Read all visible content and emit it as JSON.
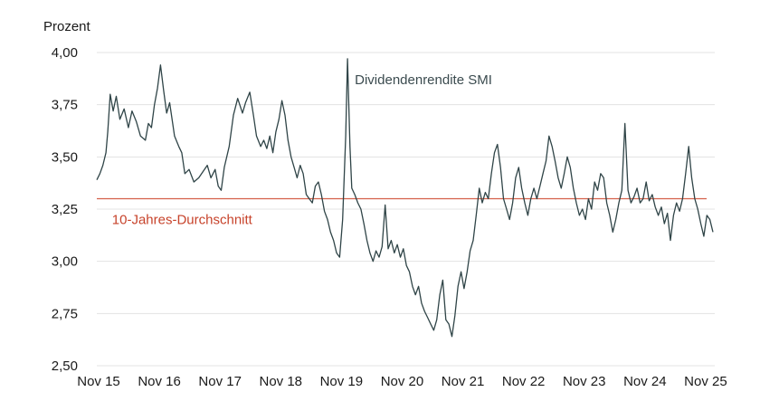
{
  "chart_data": {
    "type": "line",
    "ylabel": "Prozent",
    "ylim": [
      2.5,
      4.0
    ],
    "yticks": [
      4.0,
      3.75,
      3.5,
      3.25,
      3.0,
      2.75,
      2.5
    ],
    "ytick_labels": [
      "4,00",
      "3,75",
      "3,50",
      "3,25",
      "3,00",
      "2,75",
      "2,50"
    ],
    "xlim": [
      0,
      10.18
    ],
    "xticks": [
      0,
      1,
      2,
      3,
      4,
      5,
      6,
      7,
      8,
      9,
      10
    ],
    "xtick_labels": [
      "Nov 15",
      "Nov 16",
      "Nov 17",
      "Nov 18",
      "Nov 19",
      "Nov 20",
      "Nov 21",
      "Nov 22",
      "Nov 23",
      "Nov 24",
      "Nov 25"
    ],
    "grid": true,
    "series": [
      {
        "name": "Dividendenrendite SMI",
        "color": "#2f4447",
        "points": [
          [
            0.0,
            3.39
          ],
          [
            0.05,
            3.42
          ],
          [
            0.1,
            3.46
          ],
          [
            0.15,
            3.52
          ],
          [
            0.18,
            3.62
          ],
          [
            0.22,
            3.8
          ],
          [
            0.27,
            3.72
          ],
          [
            0.32,
            3.79
          ],
          [
            0.38,
            3.68
          ],
          [
            0.45,
            3.73
          ],
          [
            0.52,
            3.64
          ],
          [
            0.58,
            3.72
          ],
          [
            0.65,
            3.67
          ],
          [
            0.72,
            3.6
          ],
          [
            0.8,
            3.58
          ],
          [
            0.85,
            3.66
          ],
          [
            0.9,
            3.64
          ],
          [
            0.95,
            3.75
          ],
          [
            1.0,
            3.83
          ],
          [
            1.05,
            3.94
          ],
          [
            1.1,
            3.82
          ],
          [
            1.15,
            3.71
          ],
          [
            1.2,
            3.76
          ],
          [
            1.28,
            3.6
          ],
          [
            1.35,
            3.55
          ],
          [
            1.4,
            3.52
          ],
          [
            1.45,
            3.42
          ],
          [
            1.52,
            3.44
          ],
          [
            1.6,
            3.38
          ],
          [
            1.68,
            3.4
          ],
          [
            1.75,
            3.43
          ],
          [
            1.82,
            3.46
          ],
          [
            1.88,
            3.4
          ],
          [
            1.95,
            3.44
          ],
          [
            2.0,
            3.36
          ],
          [
            2.05,
            3.34
          ],
          [
            2.1,
            3.45
          ],
          [
            2.18,
            3.55
          ],
          [
            2.25,
            3.7
          ],
          [
            2.32,
            3.78
          ],
          [
            2.4,
            3.71
          ],
          [
            2.45,
            3.76
          ],
          [
            2.52,
            3.81
          ],
          [
            2.58,
            3.7
          ],
          [
            2.63,
            3.6
          ],
          [
            2.7,
            3.55
          ],
          [
            2.75,
            3.58
          ],
          [
            2.8,
            3.54
          ],
          [
            2.85,
            3.6
          ],
          [
            2.9,
            3.52
          ],
          [
            2.95,
            3.62
          ],
          [
            3.0,
            3.68
          ],
          [
            3.05,
            3.77
          ],
          [
            3.1,
            3.7
          ],
          [
            3.15,
            3.58
          ],
          [
            3.2,
            3.5
          ],
          [
            3.25,
            3.45
          ],
          [
            3.3,
            3.4
          ],
          [
            3.35,
            3.46
          ],
          [
            3.4,
            3.42
          ],
          [
            3.45,
            3.32
          ],
          [
            3.5,
            3.3
          ],
          [
            3.55,
            3.28
          ],
          [
            3.6,
            3.36
          ],
          [
            3.65,
            3.38
          ],
          [
            3.7,
            3.32
          ],
          [
            3.75,
            3.24
          ],
          [
            3.8,
            3.2
          ],
          [
            3.85,
            3.14
          ],
          [
            3.9,
            3.1
          ],
          [
            3.95,
            3.04
          ],
          [
            4.0,
            3.02
          ],
          [
            4.05,
            3.2
          ],
          [
            4.1,
            3.6
          ],
          [
            4.13,
            3.97
          ],
          [
            4.17,
            3.55
          ],
          [
            4.2,
            3.35
          ],
          [
            4.25,
            3.32
          ],
          [
            4.3,
            3.28
          ],
          [
            4.35,
            3.25
          ],
          [
            4.4,
            3.18
          ],
          [
            4.45,
            3.1
          ],
          [
            4.5,
            3.04
          ],
          [
            4.55,
            3.0
          ],
          [
            4.6,
            3.05
          ],
          [
            4.65,
            3.02
          ],
          [
            4.7,
            3.07
          ],
          [
            4.75,
            3.27
          ],
          [
            4.8,
            3.06
          ],
          [
            4.85,
            3.1
          ],
          [
            4.9,
            3.04
          ],
          [
            4.95,
            3.08
          ],
          [
            5.0,
            3.02
          ],
          [
            5.05,
            3.06
          ],
          [
            5.1,
            2.98
          ],
          [
            5.15,
            2.95
          ],
          [
            5.2,
            2.88
          ],
          [
            5.25,
            2.84
          ],
          [
            5.3,
            2.88
          ],
          [
            5.35,
            2.8
          ],
          [
            5.4,
            2.76
          ],
          [
            5.45,
            2.73
          ],
          [
            5.5,
            2.7
          ],
          [
            5.55,
            2.67
          ],
          [
            5.6,
            2.72
          ],
          [
            5.65,
            2.84
          ],
          [
            5.7,
            2.91
          ],
          [
            5.75,
            2.72
          ],
          [
            5.8,
            2.7
          ],
          [
            5.85,
            2.64
          ],
          [
            5.9,
            2.74
          ],
          [
            5.95,
            2.88
          ],
          [
            6.0,
            2.95
          ],
          [
            6.05,
            2.87
          ],
          [
            6.1,
            2.95
          ],
          [
            6.15,
            3.05
          ],
          [
            6.2,
            3.1
          ],
          [
            6.25,
            3.22
          ],
          [
            6.3,
            3.35
          ],
          [
            6.35,
            3.28
          ],
          [
            6.4,
            3.33
          ],
          [
            6.45,
            3.3
          ],
          [
            6.5,
            3.42
          ],
          [
            6.55,
            3.52
          ],
          [
            6.6,
            3.56
          ],
          [
            6.65,
            3.45
          ],
          [
            6.7,
            3.3
          ],
          [
            6.75,
            3.25
          ],
          [
            6.8,
            3.2
          ],
          [
            6.85,
            3.28
          ],
          [
            6.9,
            3.4
          ],
          [
            6.95,
            3.45
          ],
          [
            7.0,
            3.35
          ],
          [
            7.05,
            3.28
          ],
          [
            7.1,
            3.22
          ],
          [
            7.15,
            3.3
          ],
          [
            7.2,
            3.35
          ],
          [
            7.25,
            3.3
          ],
          [
            7.3,
            3.36
          ],
          [
            7.35,
            3.42
          ],
          [
            7.4,
            3.48
          ],
          [
            7.45,
            3.6
          ],
          [
            7.5,
            3.55
          ],
          [
            7.55,
            3.48
          ],
          [
            7.6,
            3.4
          ],
          [
            7.65,
            3.35
          ],
          [
            7.7,
            3.42
          ],
          [
            7.75,
            3.5
          ],
          [
            7.8,
            3.45
          ],
          [
            7.85,
            3.35
          ],
          [
            7.9,
            3.28
          ],
          [
            7.95,
            3.22
          ],
          [
            8.0,
            3.25
          ],
          [
            8.05,
            3.2
          ],
          [
            8.1,
            3.3
          ],
          [
            8.15,
            3.25
          ],
          [
            8.2,
            3.38
          ],
          [
            8.25,
            3.34
          ],
          [
            8.3,
            3.42
          ],
          [
            8.35,
            3.4
          ],
          [
            8.4,
            3.28
          ],
          [
            8.45,
            3.22
          ],
          [
            8.5,
            3.14
          ],
          [
            8.55,
            3.2
          ],
          [
            8.6,
            3.28
          ],
          [
            8.65,
            3.34
          ],
          [
            8.7,
            3.66
          ],
          [
            8.75,
            3.34
          ],
          [
            8.8,
            3.28
          ],
          [
            8.85,
            3.31
          ],
          [
            8.9,
            3.35
          ],
          [
            8.95,
            3.28
          ],
          [
            9.0,
            3.3
          ],
          [
            9.05,
            3.38
          ],
          [
            9.1,
            3.29
          ],
          [
            9.15,
            3.32
          ],
          [
            9.2,
            3.26
          ],
          [
            9.25,
            3.22
          ],
          [
            9.3,
            3.26
          ],
          [
            9.35,
            3.18
          ],
          [
            9.4,
            3.23
          ],
          [
            9.45,
            3.1
          ],
          [
            9.5,
            3.22
          ],
          [
            9.55,
            3.28
          ],
          [
            9.6,
            3.24
          ],
          [
            9.65,
            3.3
          ],
          [
            9.7,
            3.42
          ],
          [
            9.75,
            3.55
          ],
          [
            9.8,
            3.4
          ],
          [
            9.85,
            3.3
          ],
          [
            9.9,
            3.25
          ],
          [
            9.95,
            3.18
          ],
          [
            10.0,
            3.12
          ],
          [
            10.05,
            3.22
          ],
          [
            10.1,
            3.2
          ],
          [
            10.15,
            3.14
          ]
        ]
      }
    ],
    "reference_lines": [
      {
        "name": "10-Jahres-Durchschnitt",
        "value": 3.3,
        "color": "#d4614a"
      }
    ],
    "annotations": [
      {
        "text": "Dividendenrendite SMI",
        "x": 4.25,
        "y": 3.87
      },
      {
        "text": "10-Jahres-Durchschnitt",
        "x": 0.25,
        "y": 3.2
      }
    ]
  }
}
